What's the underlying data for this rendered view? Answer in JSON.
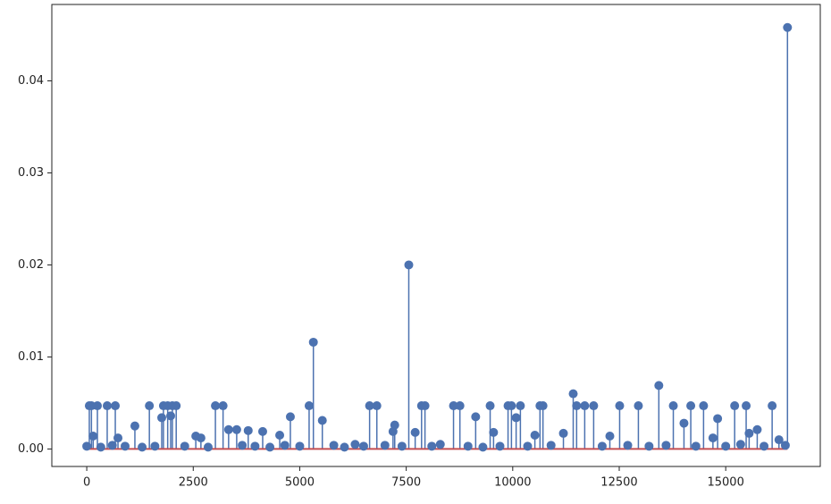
{
  "chart_data": {
    "type": "stem",
    "x": [
      0,
      60,
      110,
      150,
      250,
      330,
      480,
      600,
      670,
      733,
      900,
      1130,
      1300,
      1470,
      1600,
      1760,
      1800,
      1900,
      1970,
      2010,
      2100,
      2300,
      2560,
      2680,
      2850,
      3020,
      3200,
      3330,
      3520,
      3650,
      3790,
      3950,
      4130,
      4300,
      4530,
      4650,
      4780,
      5000,
      5220,
      5320,
      5530,
      5800,
      6050,
      6300,
      6500,
      6640,
      6810,
      7000,
      7190,
      7230,
      7400,
      7560,
      7710,
      7860,
      7940,
      8100,
      8300,
      8610,
      8760,
      8950,
      9130,
      9300,
      9470,
      9550,
      9700,
      9890,
      9970,
      10080,
      10180,
      10350,
      10520,
      10640,
      10710,
      10900,
      11190,
      11420,
      11500,
      11690,
      11900,
      12100,
      12280,
      12510,
      12700,
      12950,
      13200,
      13430,
      13600,
      13770,
      14020,
      14180,
      14300,
      14480,
      14700,
      14810,
      15000,
      15210,
      15350,
      15480,
      15550,
      15740,
      15900,
      16090,
      16250,
      16400,
      16450
    ],
    "values": [
      0.0003,
      0.0047,
      0.0047,
      0.0014,
      0.0047,
      0.0002,
      0.0047,
      0.0004,
      0.0047,
      0.0012,
      0.0003,
      0.0025,
      0.0002,
      0.0047,
      0.0003,
      0.0034,
      0.0047,
      0.0047,
      0.0036,
      0.0047,
      0.0047,
      0.0003,
      0.0014,
      0.0012,
      0.0002,
      0.0047,
      0.0047,
      0.0021,
      0.0021,
      0.0004,
      0.002,
      0.0003,
      0.0019,
      0.0002,
      0.0015,
      0.0004,
      0.0035,
      0.0003,
      0.0047,
      0.0116,
      0.0031,
      0.0004,
      0.0002,
      0.0005,
      0.0003,
      0.0047,
      0.0047,
      0.0004,
      0.0019,
      0.0026,
      0.0003,
      0.02,
      0.0018,
      0.0047,
      0.0047,
      0.0003,
      0.0005,
      0.0047,
      0.0047,
      0.0003,
      0.0035,
      0.0002,
      0.0047,
      0.0018,
      0.0003,
      0.0047,
      0.0047,
      0.0034,
      0.0047,
      0.0003,
      0.0015,
      0.0047,
      0.0047,
      0.0004,
      0.0017,
      0.006,
      0.0047,
      0.0047,
      0.0047,
      0.0003,
      0.0014,
      0.0047,
      0.0004,
      0.0047,
      0.0003,
      0.0069,
      0.0004,
      0.0047,
      0.0028,
      0.0047,
      0.0003,
      0.0047,
      0.0012,
      0.0033,
      0.0003,
      0.0047,
      0.0005,
      0.0047,
      0.0017,
      0.0021,
      0.0003,
      0.0047,
      0.001,
      0.0004,
      0.0458
    ],
    "color": "#4c72b0",
    "baseline_color": "#c44e52",
    "xlim": [
      -820,
      17220
    ],
    "ylim": [
      -0.0019,
      0.0483
    ],
    "xticks": [
      0,
      2500,
      5000,
      7500,
      10000,
      12500,
      15000
    ],
    "yticks": [
      {
        "value": 0,
        "label": "0.00"
      },
      {
        "value": 0.01,
        "label": "0.01"
      },
      {
        "value": 0.02,
        "label": "0.02"
      },
      {
        "value": 0.03,
        "label": "0.03"
      },
      {
        "value": 0.04,
        "label": "0.04"
      }
    ]
  }
}
